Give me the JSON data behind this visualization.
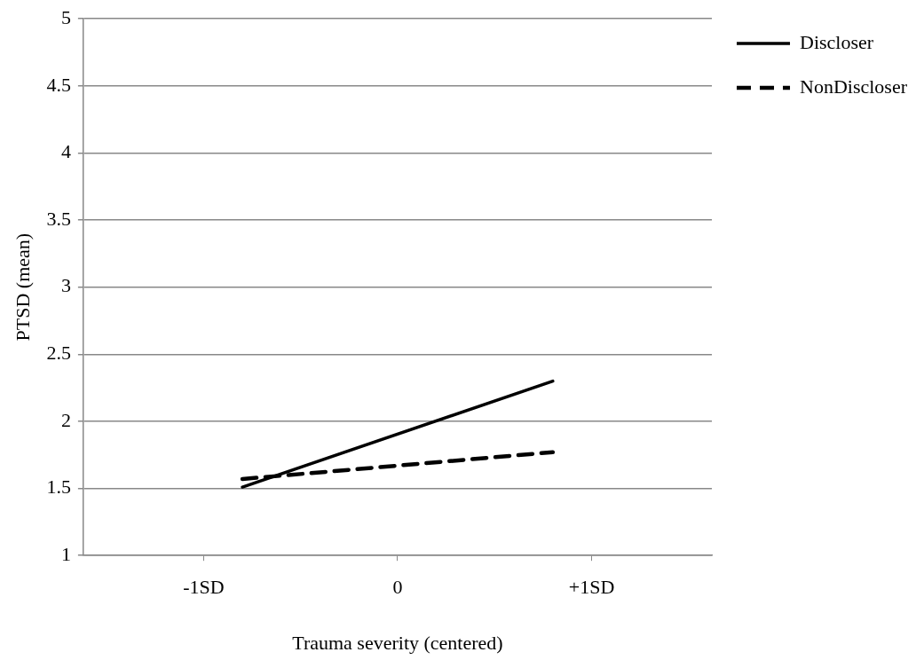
{
  "chart_data": {
    "type": "line",
    "xlabel": "Trauma severity (centered)",
    "ylabel": "PTSD (mean)",
    "xlim": [
      -1.62,
      1.62
    ],
    "xticks": [
      {
        "value": -1,
        "label": "-1SD"
      },
      0,
      {
        "value": 1,
        "label": "+1SD"
      }
    ],
    "x": [
      -0.8,
      0.8
    ],
    "ylim": [
      1,
      5
    ],
    "yticks": [
      1,
      1.5,
      2,
      2.5,
      3,
      3.5,
      4,
      4.5,
      5
    ],
    "grid": "y",
    "legend": "top right",
    "marker": "none",
    "series": [
      {
        "name": "Discloser",
        "color": "#000000",
        "values": [
          1.51,
          2.3
        ],
        "line_style": "solid"
      },
      {
        "name": "NonDiscloser",
        "color": "#000000",
        "values": [
          1.57,
          1.77
        ],
        "line_style": "dashed"
      }
    ]
  }
}
